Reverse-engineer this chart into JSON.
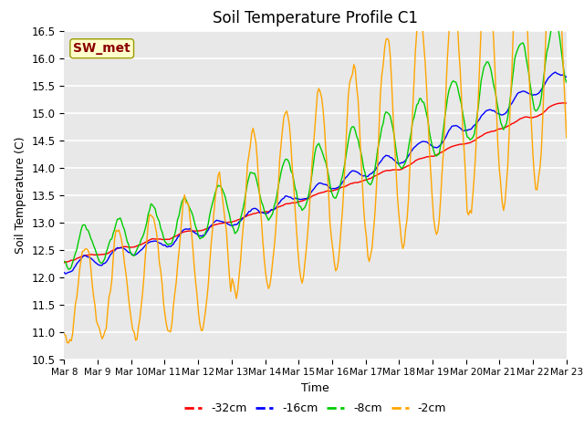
{
  "title": "Soil Temperature Profile C1",
  "xlabel": "Time",
  "ylabel": "Soil Temperature (C)",
  "ylim": [
    10.5,
    16.5
  ],
  "annotation_text": "SW_met",
  "annotation_color": "#8B0000",
  "annotation_bg": "#FFFFCC",
  "legend_labels": [
    "-32cm",
    "-16cm",
    "-8cm",
    "-2cm"
  ],
  "line_colors": [
    "#FF0000",
    "#0000FF",
    "#00CC00",
    "#FFA500"
  ],
  "xtick_labels": [
    "Mar 8",
    "Mar 9",
    "Mar 10",
    "Mar 11",
    "Mar 12",
    "Mar 13",
    "Mar 14",
    "Mar 15",
    "Mar 16",
    "Mar 17",
    "Mar 18",
    "Mar 19",
    "Mar 20",
    "Mar 21",
    "Mar 22",
    "Mar 23"
  ],
  "background_color": "#E8E8E8",
  "grid_color": "#FFFFFF",
  "title_fontsize": 12,
  "axis_fontsize": 9,
  "legend_fontsize": 9,
  "ytick_step": 0.5
}
